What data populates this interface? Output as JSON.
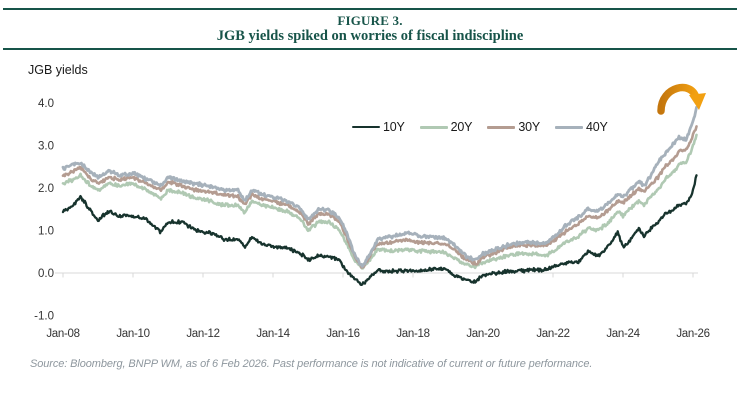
{
  "header": {
    "figure_label": "FIGURE 3.",
    "title": "JGB yields spiked on worries of fiscal indiscipline"
  },
  "chart": {
    "axis_label": "JGB yields"
  },
  "source_note": "Source: Bloomberg, BNPP WM, as of 6 Feb 2026. Past performance is not indicative of current or future performance.",
  "colors": {
    "accent_teal": "#175449",
    "axis_line": "#d9d9d9",
    "tick_text": "#333333",
    "arrow_orange_dark": "#c4760d",
    "arrow_orange_light": "#f2a011",
    "source_text": "#8e979e"
  },
  "chart_data": {
    "type": "line",
    "title": "JGB yields spiked on worries of fiscal indiscipline",
    "xlabel": "",
    "ylabel": "JGB yields",
    "ylim": [
      -1.0,
      4.0
    ],
    "y_ticks": [
      4.0,
      3.0,
      2.0,
      1.0,
      0.0,
      -1.0
    ],
    "y_tick_labels": [
      "4.0",
      "3.0",
      "2.0",
      "1.0",
      "0.0",
      "-1.0"
    ],
    "x_tick_labels": [
      "Jan-08",
      "Jan-10",
      "Jan-12",
      "Jan-14",
      "Jan-16",
      "Jan-18",
      "Jan-20",
      "Jan-22",
      "Jan-24",
      "Jan-26"
    ],
    "x_tick_years": [
      2008,
      2010,
      2012,
      2014,
      2016,
      2018,
      2020,
      2022,
      2024,
      2026
    ],
    "grid": "zero-axis-only",
    "legend_position": "top-center-inside",
    "annotation": {
      "type": "curved-arrow",
      "meaning": "spike in yields at end of series",
      "color": "#ef9b10"
    },
    "x": [
      2008.0,
      2008.3,
      2008.5,
      2008.8,
      2009.0,
      2009.3,
      2009.6,
      2010.0,
      2010.4,
      2010.8,
      2011.0,
      2011.4,
      2011.8,
      2012.2,
      2012.6,
      2013.0,
      2013.2,
      2013.4,
      2013.7,
      2014.0,
      2014.4,
      2014.8,
      2015.0,
      2015.3,
      2015.6,
      2015.9,
      2016.1,
      2016.3,
      2016.55,
      2016.8,
      2017.0,
      2017.4,
      2017.8,
      2018.2,
      2018.6,
      2018.9,
      2019.2,
      2019.5,
      2019.8,
      2020.0,
      2020.3,
      2020.7,
      2021.0,
      2021.4,
      2021.8,
      2022.1,
      2022.4,
      2022.7,
      2023.0,
      2023.3,
      2023.6,
      2023.85,
      2024.0,
      2024.2,
      2024.45,
      2024.6,
      2024.8,
      2025.0,
      2025.2,
      2025.4,
      2025.6,
      2025.8,
      2025.95,
      2026.05,
      2026.1
    ],
    "series": [
      {
        "name": "10Y",
        "color": "#17332d",
        "stroke_width": 2.3,
        "values": [
          1.45,
          1.6,
          1.8,
          1.45,
          1.25,
          1.45,
          1.35,
          1.35,
          1.25,
          0.95,
          1.2,
          1.2,
          1.0,
          0.95,
          0.8,
          0.78,
          0.6,
          0.85,
          0.68,
          0.62,
          0.6,
          0.45,
          0.3,
          0.4,
          0.38,
          0.3,
          0.05,
          -0.12,
          -0.28,
          -0.05,
          0.05,
          0.04,
          0.06,
          0.05,
          0.1,
          0.1,
          -0.05,
          -0.17,
          -0.2,
          -0.05,
          0.0,
          0.03,
          0.04,
          0.08,
          0.07,
          0.18,
          0.24,
          0.24,
          0.5,
          0.4,
          0.65,
          0.95,
          0.6,
          0.75,
          1.05,
          0.85,
          1.05,
          1.2,
          1.4,
          1.45,
          1.6,
          1.65,
          1.8,
          2.1,
          2.3
        ]
      },
      {
        "name": "20Y",
        "color": "#b0c9b3",
        "stroke_width": 2.6,
        "values": [
          2.1,
          2.2,
          2.3,
          2.05,
          1.95,
          2.1,
          2.05,
          2.1,
          1.95,
          1.75,
          1.95,
          1.9,
          1.75,
          1.7,
          1.6,
          1.6,
          1.42,
          1.7,
          1.6,
          1.55,
          1.45,
          1.25,
          1.0,
          1.2,
          1.2,
          1.0,
          0.7,
          0.35,
          0.1,
          0.35,
          0.55,
          0.52,
          0.55,
          0.52,
          0.5,
          0.48,
          0.35,
          0.2,
          0.15,
          0.25,
          0.32,
          0.4,
          0.45,
          0.45,
          0.42,
          0.55,
          0.75,
          0.85,
          1.05,
          1.0,
          1.2,
          1.45,
          1.35,
          1.5,
          1.7,
          1.6,
          1.8,
          1.95,
          2.2,
          2.35,
          2.55,
          2.6,
          2.9,
          3.1,
          3.25
        ]
      },
      {
        "name": "30Y",
        "color": "#b49c91",
        "stroke_width": 2.6,
        "values": [
          2.3,
          2.4,
          2.5,
          2.2,
          2.1,
          2.25,
          2.2,
          2.25,
          2.1,
          1.95,
          2.15,
          2.05,
          1.95,
          1.9,
          1.85,
          1.8,
          1.6,
          1.85,
          1.75,
          1.7,
          1.6,
          1.4,
          1.15,
          1.4,
          1.38,
          1.2,
          0.85,
          0.45,
          0.12,
          0.45,
          0.7,
          0.72,
          0.78,
          0.72,
          0.7,
          0.68,
          0.55,
          0.32,
          0.22,
          0.38,
          0.45,
          0.6,
          0.65,
          0.66,
          0.65,
          0.8,
          1.0,
          1.15,
          1.35,
          1.3,
          1.5,
          1.7,
          1.65,
          1.8,
          2.0,
          1.9,
          2.1,
          2.25,
          2.5,
          2.65,
          2.85,
          2.9,
          3.15,
          3.35,
          3.45
        ]
      },
      {
        "name": "40Y",
        "color": "#a6b1bb",
        "stroke_width": 2.8,
        "values": [
          2.45,
          2.55,
          2.6,
          2.35,
          2.25,
          2.4,
          2.3,
          2.35,
          2.2,
          2.05,
          2.25,
          2.15,
          2.1,
          2.05,
          1.95,
          1.95,
          1.7,
          1.95,
          1.85,
          1.8,
          1.7,
          1.5,
          1.25,
          1.5,
          1.48,
          1.3,
          0.95,
          0.5,
          0.13,
          0.5,
          0.8,
          0.85,
          0.95,
          0.88,
          0.85,
          0.82,
          0.65,
          0.4,
          0.3,
          0.45,
          0.55,
          0.65,
          0.7,
          0.72,
          0.7,
          0.9,
          1.15,
          1.3,
          1.5,
          1.45,
          1.65,
          1.85,
          1.8,
          1.95,
          2.15,
          2.05,
          2.3,
          2.6,
          2.8,
          3.0,
          3.2,
          3.15,
          3.45,
          3.7,
          3.9
        ]
      }
    ]
  }
}
